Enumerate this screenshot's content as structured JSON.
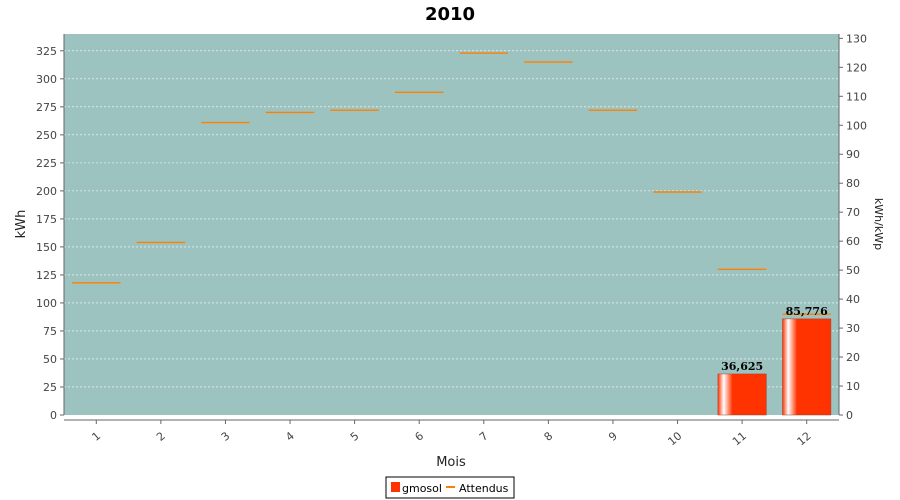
{
  "chart_data": {
    "type": "bar",
    "title": "2010",
    "xlabel": "Mois",
    "ylabel": "kWh",
    "y2label": "kWh/kWp",
    "categories": [
      "1",
      "2",
      "3",
      "4",
      "5",
      "6",
      "7",
      "8",
      "9",
      "10",
      "11",
      "12"
    ],
    "ylim": [
      0,
      340
    ],
    "y2lim": [
      0,
      131.5
    ],
    "yticks": [
      0,
      25,
      50,
      75,
      100,
      125,
      150,
      175,
      200,
      225,
      250,
      275,
      300,
      325
    ],
    "y2ticks": [
      0,
      10,
      20,
      30,
      40,
      50,
      60,
      70,
      80,
      90,
      100,
      110,
      120,
      130
    ],
    "grid": true,
    "legend_position": "bottom",
    "series": [
      {
        "name": "gmosol",
        "type": "bar",
        "color": "#ff3300",
        "values": [
          null,
          null,
          null,
          null,
          null,
          null,
          null,
          null,
          null,
          null,
          36.625,
          85.776
        ],
        "labels": [
          "",
          "",
          "",
          "",
          "",
          "",
          "",
          "",
          "",
          "",
          "36,625",
          "85,776"
        ]
      },
      {
        "name": "Attendus",
        "type": "step-line",
        "color": "#ff8000",
        "values": [
          118,
          154,
          261,
          270,
          272,
          288,
          323,
          315,
          272,
          199,
          130,
          90
        ]
      }
    ],
    "plot_background": "#9dc3c1"
  }
}
